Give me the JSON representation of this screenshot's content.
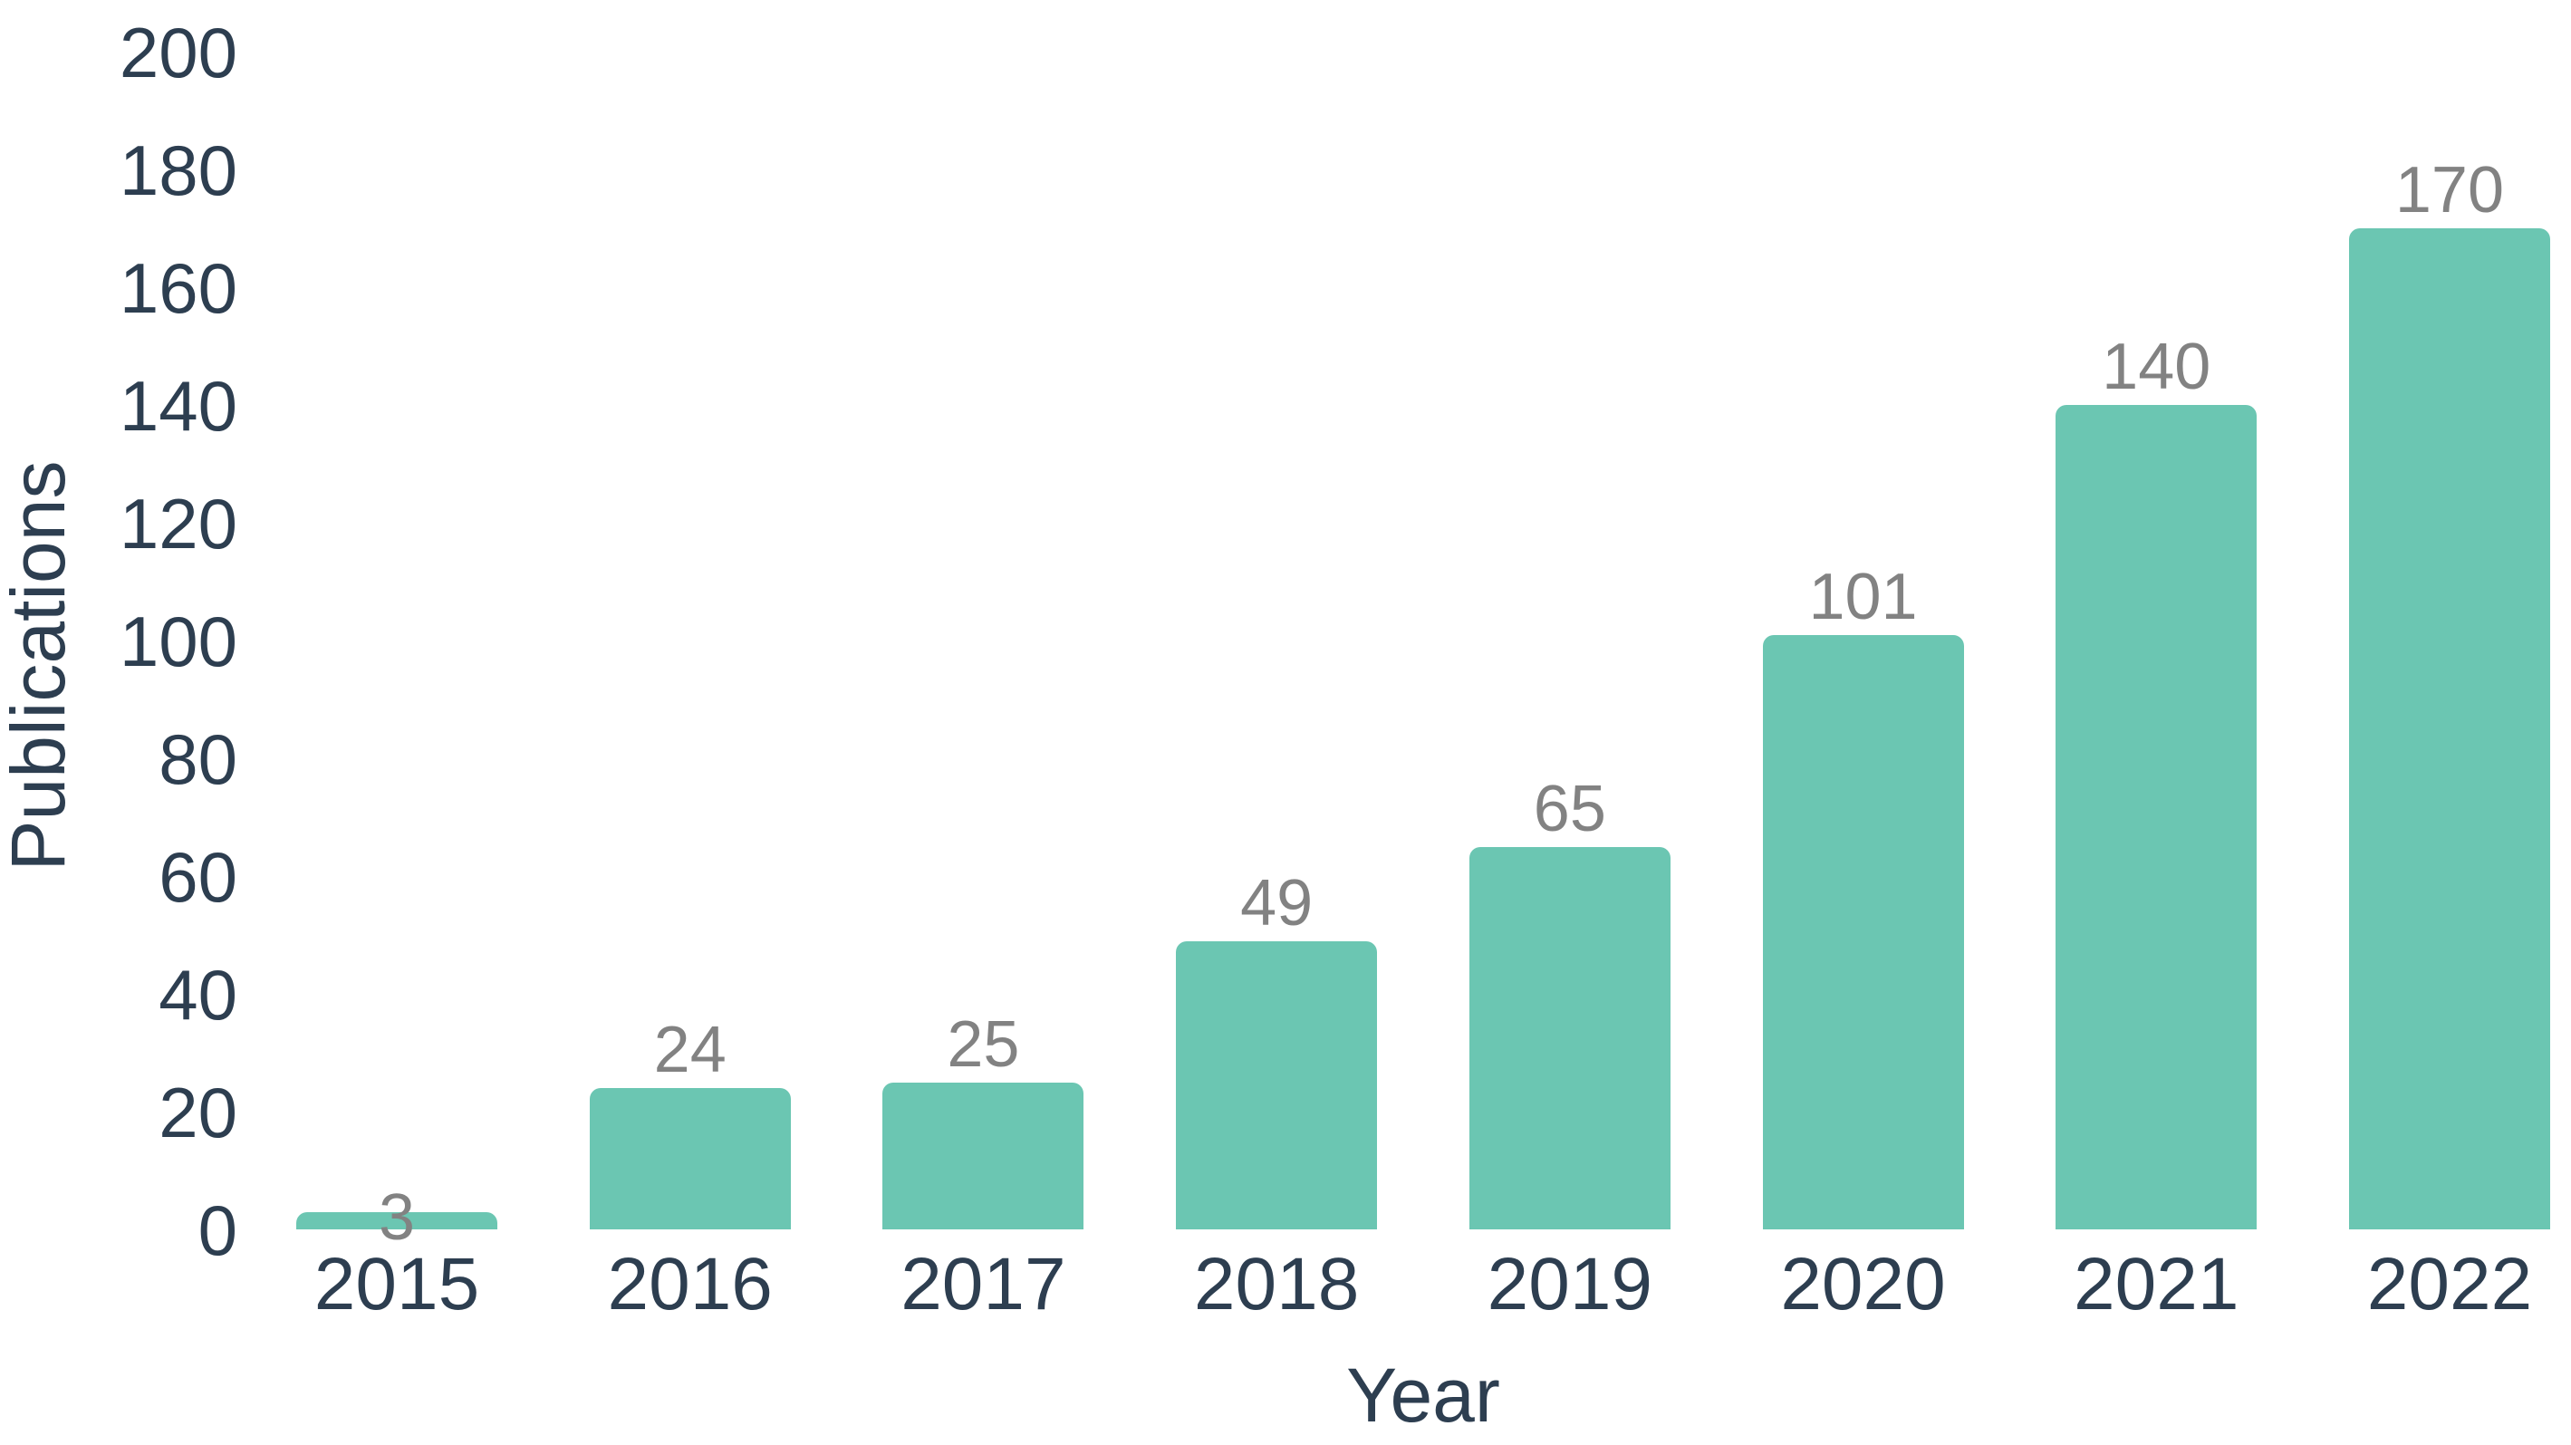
{
  "chart_data": {
    "type": "bar",
    "categories": [
      "2015",
      "2016",
      "2017",
      "2018",
      "2019",
      "2020",
      "2021",
      "2022"
    ],
    "values": [
      3,
      24,
      25,
      49,
      65,
      101,
      140,
      170
    ],
    "title": "",
    "xlabel": "Year",
    "ylabel": "Publications",
    "ylim": [
      0,
      200
    ],
    "ytick_step": 20,
    "ytick_labels": [
      "0",
      "20",
      "40",
      "60",
      "80",
      "100",
      "120",
      "140",
      "160",
      "180",
      "200"
    ],
    "value_labels": [
      "3",
      "24",
      "25",
      "49",
      "65",
      "101",
      "140",
      "170"
    ],
    "grid": false,
    "legend": "none",
    "bar_color": "#6BC6B2",
    "value_label_color": "#828282",
    "axis_text_color": "#2D3E50"
  }
}
